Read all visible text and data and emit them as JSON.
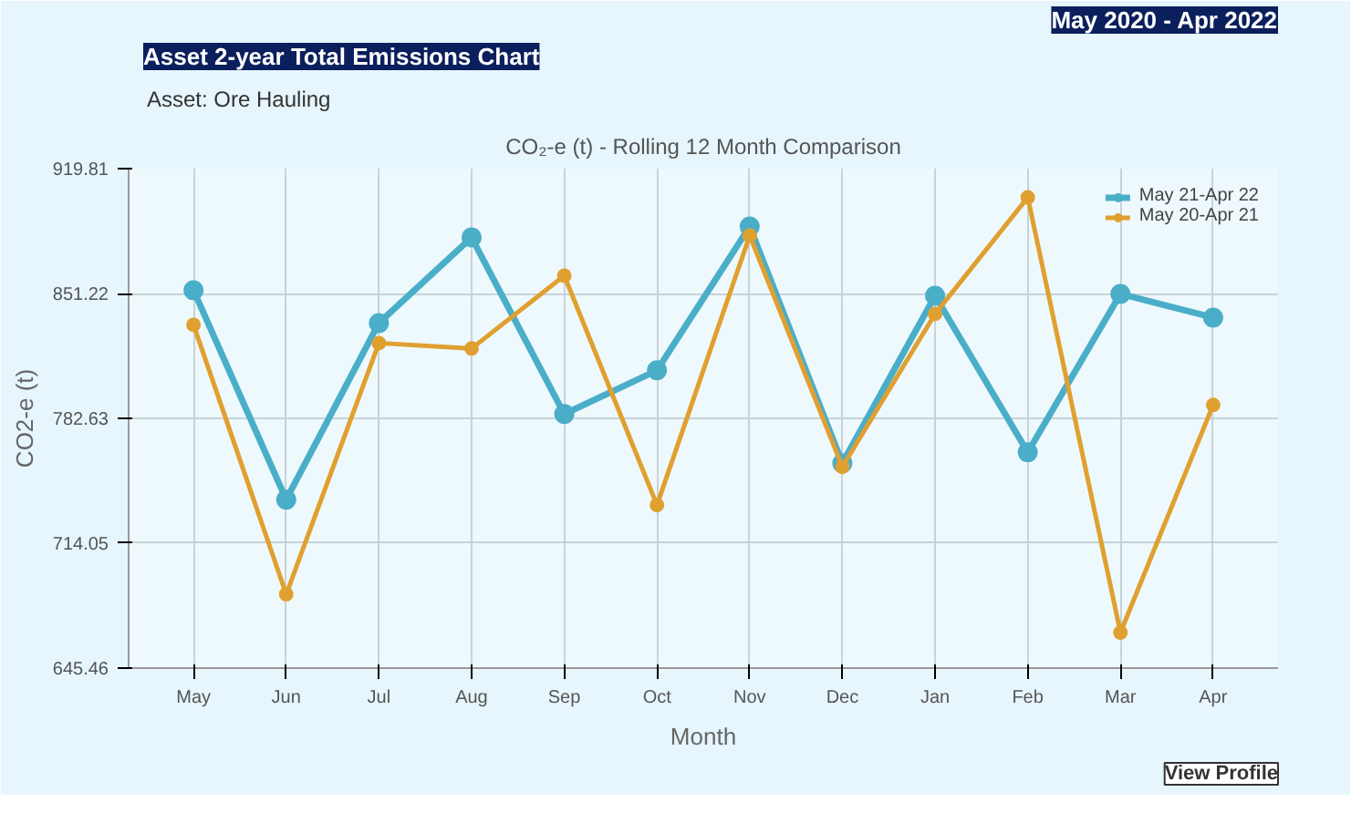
{
  "chart_data": {
    "type": "line",
    "title": "Asset 2-year Total Emissions Chart",
    "subtitle": "CO₂-e (t) - Rolling 12 Month Comparison",
    "annotations": [
      "May 2020 - Apr 2022",
      "Asset: Ore Hauling",
      "View Profile"
    ],
    "xlabel": "Month",
    "ylabel": "CO2-e (t)",
    "categories": [
      "May",
      "Jun",
      "Jul",
      "Aug",
      "Sep",
      "Oct",
      "Nov",
      "Dec",
      "Jan",
      "Feb",
      "Mar",
      "Apr"
    ],
    "ylim": [
      645.46,
      919.81
    ],
    "yticks": [
      645.46,
      714.05,
      782.63,
      851.22,
      919.81
    ],
    "series": [
      {
        "name": "May 21-Apr 22",
        "color": "#4aaec8",
        "values": [
          853,
          738,
          835,
          882,
          785,
          809,
          888,
          758,
          850,
          764,
          851,
          838
        ]
      },
      {
        "name": "May 20-Apr 21",
        "color": "#e0a030",
        "values": [
          834,
          686,
          824,
          821,
          861,
          735,
          883,
          756,
          840,
          904,
          665,
          790
        ]
      }
    ],
    "grid": true,
    "legend": "top right",
    "marker": "circle",
    "line_style": "solid"
  }
}
